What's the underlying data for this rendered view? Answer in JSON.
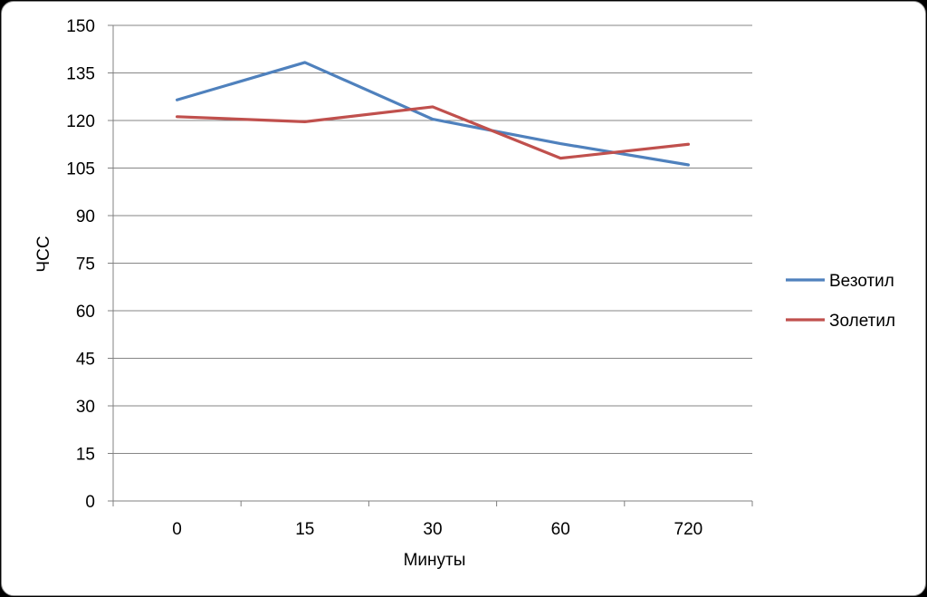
{
  "chart_data": {
    "type": "line",
    "categories": [
      "0",
      "15",
      "30",
      "60",
      "720"
    ],
    "series": [
      {
        "name": "Везотил",
        "color": "#4F81BD",
        "values": [
          126.5,
          138.3,
          120.4,
          112.7,
          106
        ]
      },
      {
        "name": "Золетил",
        "color": "#C0504D",
        "values": [
          121.2,
          119.6,
          124.3,
          108.1,
          112.5
        ]
      }
    ],
    "xlabel": "Минуты",
    "ylabel": "ЧСС",
    "ylim": [
      0,
      150
    ],
    "yticks": [
      0,
      15,
      30,
      45,
      60,
      75,
      90,
      105,
      120,
      135,
      150
    ],
    "grid": true,
    "legend_position": "right"
  }
}
